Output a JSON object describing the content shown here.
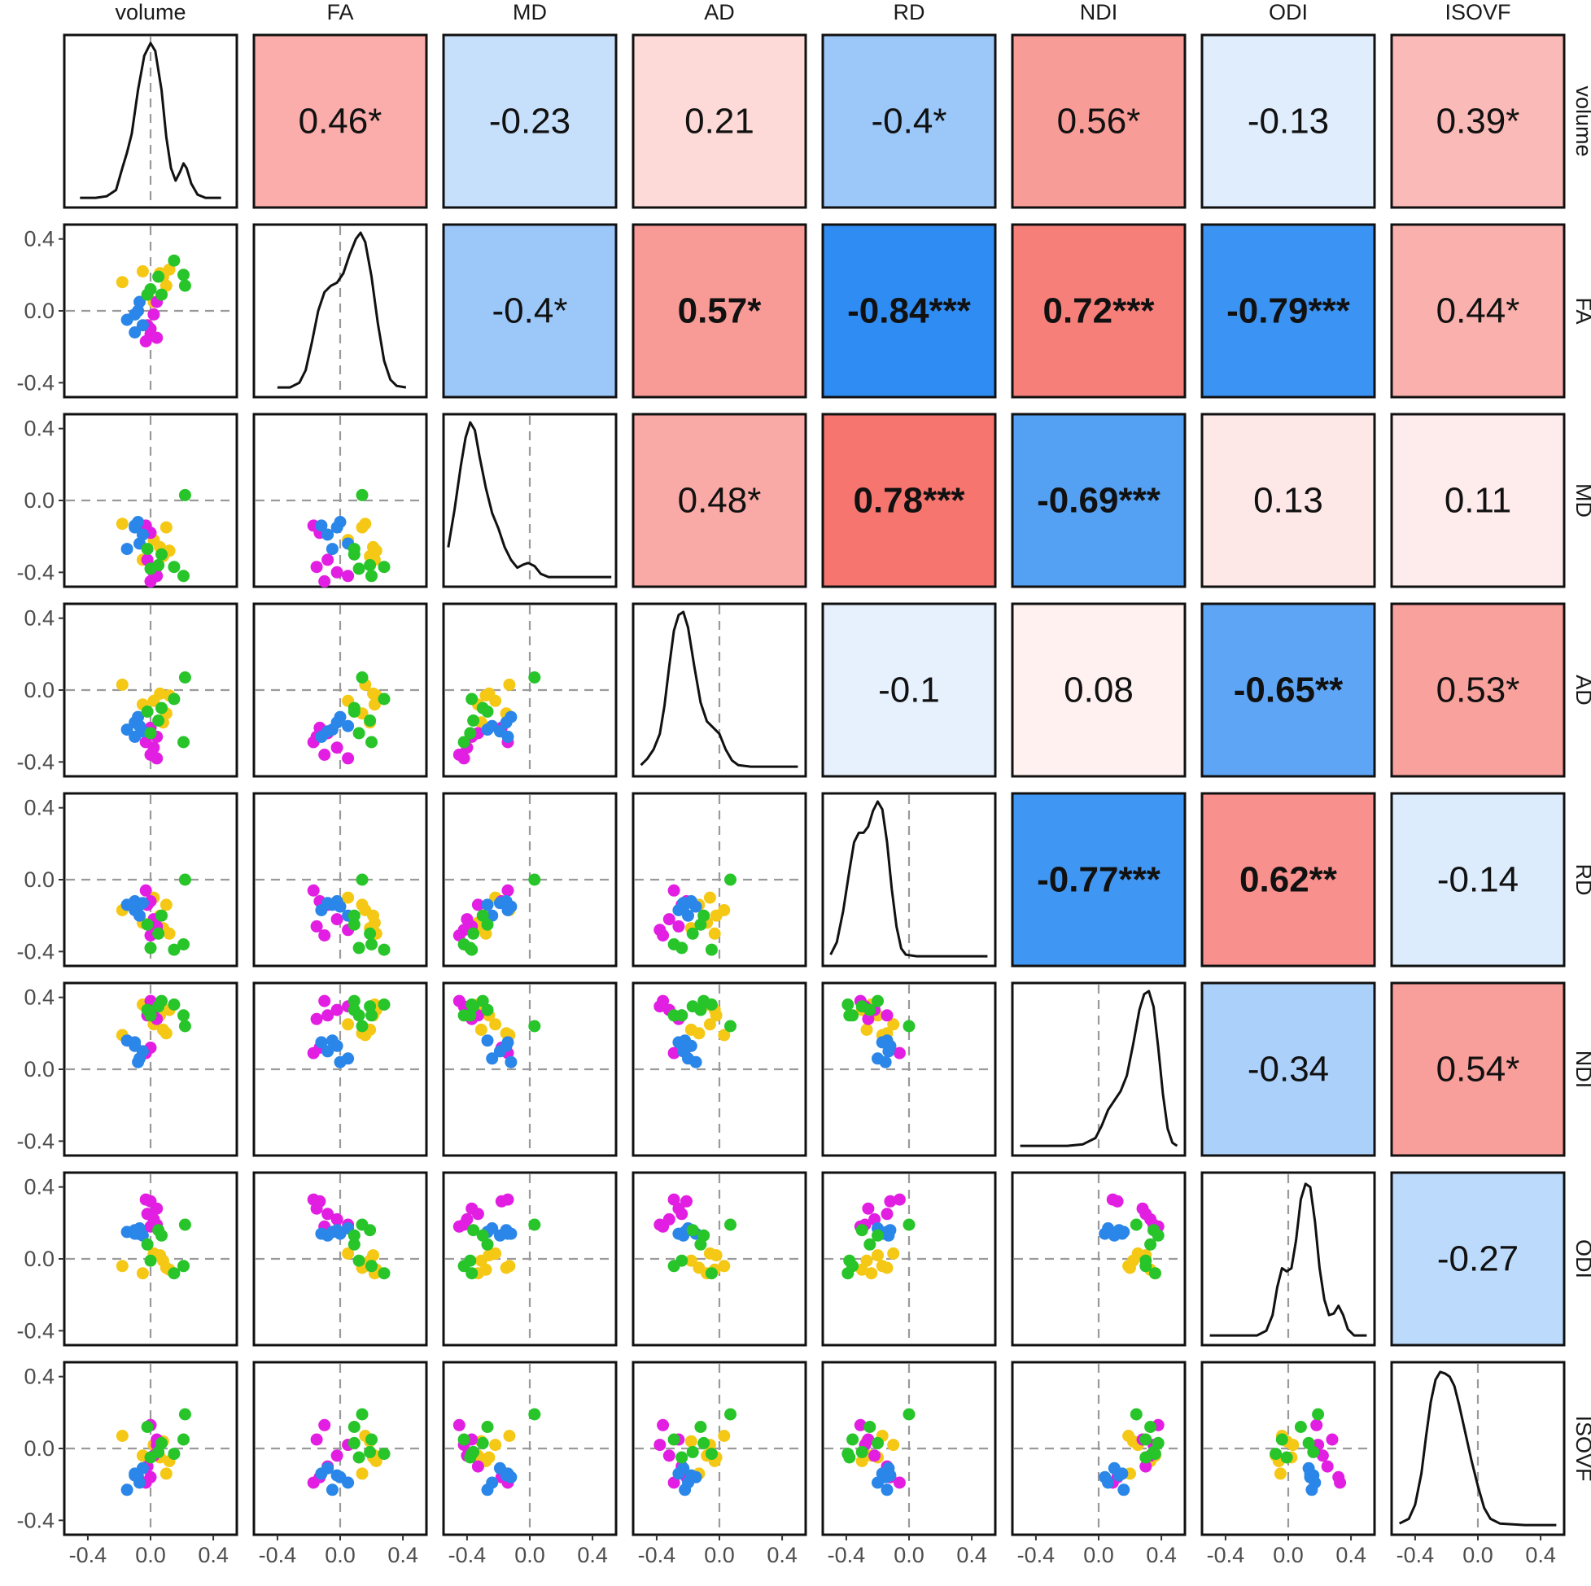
{
  "chart_data": {
    "type": "scatter",
    "title": "",
    "variables": [
      "volume",
      "FA",
      "MD",
      "AD",
      "RD",
      "NDI",
      "ODI",
      "ISOVF"
    ],
    "axis_ticks": [
      -0.4,
      0.0,
      0.4
    ],
    "axis_tick_labels": [
      "-0.4",
      "0.0",
      "0.4"
    ],
    "xlim": [
      -0.55,
      0.55
    ],
    "ylim": [
      -0.48,
      0.48
    ],
    "reference_lines": {
      "x": 0,
      "y": 0,
      "style": "dashed"
    },
    "group_colors": [
      "#f5c816",
      "#e21ee2",
      "#2a86e8",
      "#27c42a"
    ],
    "color_scale": {
      "negative": "#2f8cf2",
      "neutral": "#ffffff",
      "positive": "#f56a64",
      "cap_abs": 0.84
    },
    "correlations": [
      {
        "row": "volume",
        "col": "FA",
        "value": 0.46,
        "label": "0.46*",
        "bold": false
      },
      {
        "row": "volume",
        "col": "MD",
        "value": -0.23,
        "label": "-0.23",
        "bold": false
      },
      {
        "row": "volume",
        "col": "AD",
        "value": 0.21,
        "label": "0.21",
        "bold": false
      },
      {
        "row": "volume",
        "col": "RD",
        "value": -0.4,
        "label": "-0.4*",
        "bold": false
      },
      {
        "row": "volume",
        "col": "NDI",
        "value": 0.56,
        "label": "0.56*",
        "bold": false
      },
      {
        "row": "volume",
        "col": "ODI",
        "value": -0.13,
        "label": "-0.13",
        "bold": false
      },
      {
        "row": "volume",
        "col": "ISOVF",
        "value": 0.39,
        "label": "0.39*",
        "bold": false
      },
      {
        "row": "FA",
        "col": "MD",
        "value": -0.4,
        "label": "-0.4*",
        "bold": false
      },
      {
        "row": "FA",
        "col": "AD",
        "value": 0.57,
        "label": "0.57*",
        "bold": true
      },
      {
        "row": "FA",
        "col": "RD",
        "value": -0.84,
        "label": "-0.84***",
        "bold": true
      },
      {
        "row": "FA",
        "col": "NDI",
        "value": 0.72,
        "label": "0.72***",
        "bold": true
      },
      {
        "row": "FA",
        "col": "ODI",
        "value": -0.79,
        "label": "-0.79***",
        "bold": true
      },
      {
        "row": "FA",
        "col": "ISOVF",
        "value": 0.44,
        "label": "0.44*",
        "bold": false
      },
      {
        "row": "MD",
        "col": "AD",
        "value": 0.48,
        "label": "0.48*",
        "bold": false
      },
      {
        "row": "MD",
        "col": "RD",
        "value": 0.78,
        "label": "0.78***",
        "bold": true
      },
      {
        "row": "MD",
        "col": "NDI",
        "value": -0.69,
        "label": "-0.69***",
        "bold": true
      },
      {
        "row": "MD",
        "col": "ODI",
        "value": 0.13,
        "label": "0.13",
        "bold": false
      },
      {
        "row": "MD",
        "col": "ISOVF",
        "value": 0.11,
        "label": "0.11",
        "bold": false
      },
      {
        "row": "AD",
        "col": "RD",
        "value": -0.1,
        "label": "-0.1",
        "bold": false
      },
      {
        "row": "AD",
        "col": "NDI",
        "value": 0.08,
        "label": "0.08",
        "bold": false
      },
      {
        "row": "AD",
        "col": "ODI",
        "value": -0.65,
        "label": "-0.65**",
        "bold": true
      },
      {
        "row": "AD",
        "col": "ISOVF",
        "value": 0.53,
        "label": "0.53*",
        "bold": false
      },
      {
        "row": "RD",
        "col": "NDI",
        "value": -0.77,
        "label": "-0.77***",
        "bold": true
      },
      {
        "row": "RD",
        "col": "ODI",
        "value": 0.62,
        "label": "0.62**",
        "bold": true
      },
      {
        "row": "RD",
        "col": "ISOVF",
        "value": -0.14,
        "label": "-0.14",
        "bold": false
      },
      {
        "row": "NDI",
        "col": "ODI",
        "value": -0.34,
        "label": "-0.34",
        "bold": false
      },
      {
        "row": "NDI",
        "col": "ISOVF",
        "value": 0.54,
        "label": "0.54*",
        "bold": false
      },
      {
        "row": "ODI",
        "col": "ISOVF",
        "value": -0.27,
        "label": "-0.27",
        "bold": false
      }
    ],
    "densities": {
      "volume": [
        [
          -0.45,
          0.01
        ],
        [
          -0.35,
          0.01
        ],
        [
          -0.28,
          0.02
        ],
        [
          -0.22,
          0.06
        ],
        [
          -0.18,
          0.2
        ],
        [
          -0.15,
          0.3
        ],
        [
          -0.12,
          0.42
        ],
        [
          -0.08,
          0.7
        ],
        [
          -0.04,
          0.92
        ],
        [
          0.0,
          1.0
        ],
        [
          0.03,
          0.95
        ],
        [
          0.07,
          0.7
        ],
        [
          0.1,
          0.4
        ],
        [
          0.13,
          0.2
        ],
        [
          0.16,
          0.12
        ],
        [
          0.19,
          0.18
        ],
        [
          0.21,
          0.23
        ],
        [
          0.23,
          0.2
        ],
        [
          0.26,
          0.1
        ],
        [
          0.3,
          0.03
        ],
        [
          0.35,
          0.01
        ],
        [
          0.45,
          0.01
        ]
      ],
      "FA": [
        [
          -0.4,
          0.01
        ],
        [
          -0.32,
          0.01
        ],
        [
          -0.26,
          0.04
        ],
        [
          -0.22,
          0.12
        ],
        [
          -0.18,
          0.3
        ],
        [
          -0.14,
          0.5
        ],
        [
          -0.1,
          0.62
        ],
        [
          -0.06,
          0.66
        ],
        [
          -0.02,
          0.68
        ],
        [
          0.02,
          0.74
        ],
        [
          0.06,
          0.86
        ],
        [
          0.1,
          0.96
        ],
        [
          0.13,
          1.0
        ],
        [
          0.16,
          0.94
        ],
        [
          0.2,
          0.72
        ],
        [
          0.24,
          0.42
        ],
        [
          0.28,
          0.18
        ],
        [
          0.32,
          0.06
        ],
        [
          0.36,
          0.02
        ],
        [
          0.42,
          0.01
        ]
      ],
      "MD": [
        [
          -0.52,
          0.2
        ],
        [
          -0.48,
          0.44
        ],
        [
          -0.44,
          0.72
        ],
        [
          -0.41,
          0.9
        ],
        [
          -0.38,
          1.0
        ],
        [
          -0.35,
          0.95
        ],
        [
          -0.32,
          0.78
        ],
        [
          -0.28,
          0.58
        ],
        [
          -0.24,
          0.42
        ],
        [
          -0.2,
          0.32
        ],
        [
          -0.16,
          0.2
        ],
        [
          -0.12,
          0.12
        ],
        [
          -0.08,
          0.07
        ],
        [
          -0.04,
          0.09
        ],
        [
          -0.01,
          0.1
        ],
        [
          0.03,
          0.08
        ],
        [
          0.07,
          0.03
        ],
        [
          0.12,
          0.01
        ],
        [
          0.2,
          0.01
        ],
        [
          0.3,
          0.01
        ],
        [
          0.52,
          0.01
        ]
      ],
      "AD": [
        [
          -0.5,
          0.02
        ],
        [
          -0.46,
          0.06
        ],
        [
          -0.42,
          0.12
        ],
        [
          -0.38,
          0.22
        ],
        [
          -0.35,
          0.4
        ],
        [
          -0.32,
          0.65
        ],
        [
          -0.29,
          0.88
        ],
        [
          -0.26,
          0.98
        ],
        [
          -0.23,
          1.0
        ],
        [
          -0.2,
          0.9
        ],
        [
          -0.16,
          0.65
        ],
        [
          -0.12,
          0.42
        ],
        [
          -0.08,
          0.3
        ],
        [
          -0.04,
          0.26
        ],
        [
          0.0,
          0.22
        ],
        [
          0.04,
          0.12
        ],
        [
          0.08,
          0.05
        ],
        [
          0.12,
          0.02
        ],
        [
          0.2,
          0.01
        ],
        [
          0.3,
          0.01
        ],
        [
          0.5,
          0.01
        ]
      ],
      "RD": [
        [
          -0.5,
          0.02
        ],
        [
          -0.46,
          0.1
        ],
        [
          -0.42,
          0.3
        ],
        [
          -0.38,
          0.56
        ],
        [
          -0.35,
          0.74
        ],
        [
          -0.32,
          0.8
        ],
        [
          -0.29,
          0.8
        ],
        [
          -0.26,
          0.84
        ],
        [
          -0.23,
          0.94
        ],
        [
          -0.2,
          1.0
        ],
        [
          -0.17,
          0.95
        ],
        [
          -0.14,
          0.74
        ],
        [
          -0.11,
          0.44
        ],
        [
          -0.08,
          0.2
        ],
        [
          -0.05,
          0.06
        ],
        [
          -0.02,
          0.02
        ],
        [
          0.05,
          0.01
        ],
        [
          0.2,
          0.01
        ],
        [
          0.5,
          0.01
        ]
      ],
      "NDI": [
        [
          -0.5,
          0.01
        ],
        [
          -0.2,
          0.01
        ],
        [
          -0.1,
          0.02
        ],
        [
          -0.02,
          0.06
        ],
        [
          0.02,
          0.14
        ],
        [
          0.06,
          0.24
        ],
        [
          0.1,
          0.3
        ],
        [
          0.14,
          0.36
        ],
        [
          0.18,
          0.46
        ],
        [
          0.22,
          0.66
        ],
        [
          0.26,
          0.88
        ],
        [
          0.29,
          0.98
        ],
        [
          0.32,
          1.0
        ],
        [
          0.35,
          0.9
        ],
        [
          0.38,
          0.64
        ],
        [
          0.41,
          0.34
        ],
        [
          0.44,
          0.12
        ],
        [
          0.47,
          0.03
        ],
        [
          0.5,
          0.01
        ]
      ],
      "ODI": [
        [
          -0.5,
          0.01
        ],
        [
          -0.2,
          0.01
        ],
        [
          -0.14,
          0.04
        ],
        [
          -0.1,
          0.14
        ],
        [
          -0.07,
          0.32
        ],
        [
          -0.04,
          0.44
        ],
        [
          -0.01,
          0.42
        ],
        [
          0.02,
          0.44
        ],
        [
          0.05,
          0.62
        ],
        [
          0.08,
          0.88
        ],
        [
          0.11,
          0.98
        ],
        [
          0.14,
          0.96
        ],
        [
          0.17,
          0.74
        ],
        [
          0.2,
          0.44
        ],
        [
          0.23,
          0.24
        ],
        [
          0.26,
          0.14
        ],
        [
          0.29,
          0.15
        ],
        [
          0.32,
          0.2
        ],
        [
          0.35,
          0.14
        ],
        [
          0.38,
          0.05
        ],
        [
          0.42,
          0.01
        ],
        [
          0.5,
          0.01
        ]
      ],
      "ISOVF": [
        [
          -0.5,
          0.02
        ],
        [
          -0.44,
          0.05
        ],
        [
          -0.4,
          0.14
        ],
        [
          -0.36,
          0.34
        ],
        [
          -0.33,
          0.58
        ],
        [
          -0.3,
          0.8
        ],
        [
          -0.27,
          0.94
        ],
        [
          -0.24,
          0.99
        ],
        [
          -0.21,
          0.98
        ],
        [
          -0.18,
          0.96
        ],
        [
          -0.15,
          0.9
        ],
        [
          -0.12,
          0.78
        ],
        [
          -0.08,
          0.6
        ],
        [
          -0.04,
          0.42
        ],
        [
          0.0,
          0.26
        ],
        [
          0.04,
          0.12
        ],
        [
          0.08,
          0.05
        ],
        [
          0.14,
          0.02
        ],
        [
          0.3,
          0.01
        ],
        [
          0.5,
          0.01
        ]
      ]
    },
    "observations": [
      {
        "group": 0,
        "volume": -0.18,
        "FA": 0.16,
        "MD": -0.13,
        "AD": 0.03,
        "RD": -0.17,
        "NDI": 0.19,
        "ODI": -0.04,
        "ISOVF": 0.07
      },
      {
        "group": 0,
        "volume": 0.02,
        "FA": 0.05,
        "MD": -0.22,
        "AD": -0.06,
        "RD": -0.1,
        "NDI": 0.25,
        "ODI": 0.03,
        "ISOVF": 0.02
      },
      {
        "group": 0,
        "volume": 0.08,
        "FA": 0.19,
        "MD": -0.31,
        "AD": -0.18,
        "RD": -0.27,
        "NDI": 0.22,
        "ODI": -0.01,
        "ISOVF": 0.04
      },
      {
        "group": 0,
        "volume": 0.12,
        "FA": 0.23,
        "MD": -0.28,
        "AD": -0.03,
        "RD": -0.3,
        "NDI": 0.33,
        "ODI": -0.06,
        "ISOVF": -0.07
      },
      {
        "group": 0,
        "volume": -0.05,
        "FA": 0.22,
        "MD": -0.33,
        "AD": -0.08,
        "RD": -0.24,
        "NDI": 0.36,
        "ODI": -0.08,
        "ISOVF": -0.04
      },
      {
        "group": 0,
        "volume": 0.1,
        "FA": 0.14,
        "MD": -0.15,
        "AD": -0.13,
        "RD": -0.14,
        "NDI": 0.2,
        "ODI": -0.05,
        "ISOVF": -0.14
      },
      {
        "group": 0,
        "volume": 0.06,
        "FA": 0.21,
        "MD": -0.26,
        "AD": -0.02,
        "RD": -0.2,
        "NDI": 0.3,
        "ODI": 0.02,
        "ISOVF": -0.05
      },
      {
        "group": 1,
        "volume": -0.03,
        "FA": -0.17,
        "MD": -0.14,
        "AD": -0.29,
        "RD": -0.06,
        "NDI": 0.09,
        "ODI": 0.33,
        "ISOVF": -0.19
      },
      {
        "group": 1,
        "volume": 0.0,
        "FA": -0.13,
        "MD": -0.18,
        "AD": -0.21,
        "RD": -0.12,
        "NDI": 0.12,
        "ODI": 0.32,
        "ISOVF": -0.16
      },
      {
        "group": 1,
        "volume": -0.02,
        "FA": -0.08,
        "MD": -0.33,
        "AD": -0.24,
        "RD": -0.14,
        "NDI": 0.3,
        "ODI": 0.25,
        "ISOVF": -0.1
      },
      {
        "group": 1,
        "volume": 0.02,
        "FA": -0.02,
        "MD": -0.4,
        "AD": -0.32,
        "RD": -0.22,
        "NDI": 0.33,
        "ODI": 0.22,
        "ISOVF": -0.04
      },
      {
        "group": 1,
        "volume": 0.04,
        "FA": 0.05,
        "MD": -0.42,
        "AD": -0.38,
        "RD": -0.28,
        "NDI": 0.35,
        "ODI": 0.19,
        "ISOVF": 0.02
      },
      {
        "group": 1,
        "volume": 0.0,
        "FA": -0.1,
        "MD": -0.45,
        "AD": -0.36,
        "RD": -0.31,
        "NDI": 0.38,
        "ODI": 0.18,
        "ISOVF": 0.13
      },
      {
        "group": 1,
        "volume": 0.04,
        "FA": -0.15,
        "MD": -0.37,
        "AD": -0.26,
        "RD": -0.26,
        "NDI": 0.28,
        "ODI": 0.28,
        "ISOVF": 0.05
      },
      {
        "group": 2,
        "volume": -0.15,
        "FA": -0.05,
        "MD": -0.27,
        "AD": -0.22,
        "RD": -0.14,
        "NDI": 0.16,
        "ODI": 0.15,
        "ISOVF": -0.23
      },
      {
        "group": 2,
        "volume": -0.1,
        "FA": -0.02,
        "MD": -0.15,
        "AD": -0.18,
        "RD": -0.12,
        "NDI": 0.13,
        "ODI": 0.16,
        "ISOVF": -0.15
      },
      {
        "group": 2,
        "volume": -0.08,
        "FA": 0.0,
        "MD": -0.12,
        "AD": -0.15,
        "RD": -0.15,
        "NDI": 0.04,
        "ODI": 0.14,
        "ISOVF": -0.16
      },
      {
        "group": 2,
        "volume": -0.05,
        "FA": -0.08,
        "MD": -0.19,
        "AD": -0.23,
        "RD": -0.13,
        "NDI": 0.1,
        "ODI": 0.13,
        "ISOVF": -0.11
      },
      {
        "group": 2,
        "volume": -0.07,
        "FA": 0.05,
        "MD": -0.24,
        "AD": -0.2,
        "RD": -0.2,
        "NDI": 0.06,
        "ODI": 0.17,
        "ISOVF": -0.19
      },
      {
        "group": 2,
        "volume": -0.1,
        "FA": -0.12,
        "MD": -0.14,
        "AD": -0.26,
        "RD": -0.17,
        "NDI": 0.15,
        "ODI": 0.14,
        "ISOVF": -0.14
      },
      {
        "group": 3,
        "volume": 0.05,
        "FA": 0.19,
        "MD": -0.36,
        "AD": -0.17,
        "RD": -0.3,
        "NDI": 0.35,
        "ODI": 0.16,
        "ISOVF": -0.02
      },
      {
        "group": 3,
        "volume": 0.15,
        "FA": 0.28,
        "MD": -0.37,
        "AD": -0.05,
        "RD": -0.39,
        "NDI": 0.36,
        "ODI": -0.08,
        "ISOVF": -0.03
      },
      {
        "group": 3,
        "volume": 0.22,
        "FA": 0.14,
        "MD": 0.03,
        "AD": 0.07,
        "RD": 0.0,
        "NDI": 0.24,
        "ODI": 0.19,
        "ISOVF": 0.19
      },
      {
        "group": 3,
        "volume": 0.0,
        "FA": 0.12,
        "MD": -0.38,
        "AD": -0.24,
        "RD": -0.38,
        "NDI": 0.3,
        "ODI": -0.01,
        "ISOVF": -0.05
      },
      {
        "group": 3,
        "volume": 0.07,
        "FA": 0.09,
        "MD": -0.3,
        "AD": -0.1,
        "RD": -0.2,
        "NDI": 0.38,
        "ODI": 0.13,
        "ISOVF": 0.03
      },
      {
        "group": 3,
        "volume": 0.21,
        "FA": 0.2,
        "MD": -0.42,
        "AD": -0.29,
        "RD": -0.36,
        "NDI": 0.3,
        "ODI": -0.04,
        "ISOVF": 0.05
      },
      {
        "group": 3,
        "volume": -0.02,
        "FA": 0.09,
        "MD": -0.27,
        "AD": -0.12,
        "RD": -0.25,
        "NDI": 0.33,
        "ODI": 0.08,
        "ISOVF": 0.12
      }
    ]
  }
}
